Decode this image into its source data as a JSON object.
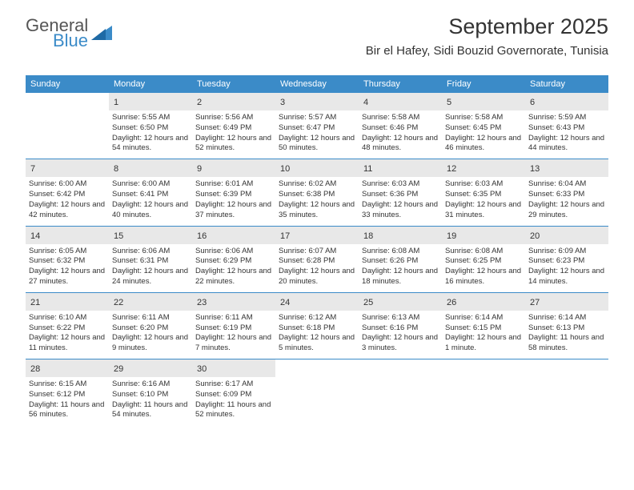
{
  "brand": {
    "name1": "General",
    "name2": "Blue"
  },
  "header": {
    "title": "September 2025",
    "location": "Bir el Hafey, Sidi Bouzid Governorate, Tunisia"
  },
  "colors": {
    "accent": "#3b8bc8",
    "row_border": "#3b8bc8",
    "daynum_bg": "#e8e8e8",
    "text": "#333333",
    "bg": "#ffffff"
  },
  "dayHeaders": [
    "Sunday",
    "Monday",
    "Tuesday",
    "Wednesday",
    "Thursday",
    "Friday",
    "Saturday"
  ],
  "weeks": [
    [
      {
        "blank": true
      },
      {
        "n": "1",
        "sr": "Sunrise: 5:55 AM",
        "ss": "Sunset: 6:50 PM",
        "dl": "Daylight: 12 hours and 54 minutes."
      },
      {
        "n": "2",
        "sr": "Sunrise: 5:56 AM",
        "ss": "Sunset: 6:49 PM",
        "dl": "Daylight: 12 hours and 52 minutes."
      },
      {
        "n": "3",
        "sr": "Sunrise: 5:57 AM",
        "ss": "Sunset: 6:47 PM",
        "dl": "Daylight: 12 hours and 50 minutes."
      },
      {
        "n": "4",
        "sr": "Sunrise: 5:58 AM",
        "ss": "Sunset: 6:46 PM",
        "dl": "Daylight: 12 hours and 48 minutes."
      },
      {
        "n": "5",
        "sr": "Sunrise: 5:58 AM",
        "ss": "Sunset: 6:45 PM",
        "dl": "Daylight: 12 hours and 46 minutes."
      },
      {
        "n": "6",
        "sr": "Sunrise: 5:59 AM",
        "ss": "Sunset: 6:43 PM",
        "dl": "Daylight: 12 hours and 44 minutes."
      }
    ],
    [
      {
        "n": "7",
        "sr": "Sunrise: 6:00 AM",
        "ss": "Sunset: 6:42 PM",
        "dl": "Daylight: 12 hours and 42 minutes."
      },
      {
        "n": "8",
        "sr": "Sunrise: 6:00 AM",
        "ss": "Sunset: 6:41 PM",
        "dl": "Daylight: 12 hours and 40 minutes."
      },
      {
        "n": "9",
        "sr": "Sunrise: 6:01 AM",
        "ss": "Sunset: 6:39 PM",
        "dl": "Daylight: 12 hours and 37 minutes."
      },
      {
        "n": "10",
        "sr": "Sunrise: 6:02 AM",
        "ss": "Sunset: 6:38 PM",
        "dl": "Daylight: 12 hours and 35 minutes."
      },
      {
        "n": "11",
        "sr": "Sunrise: 6:03 AM",
        "ss": "Sunset: 6:36 PM",
        "dl": "Daylight: 12 hours and 33 minutes."
      },
      {
        "n": "12",
        "sr": "Sunrise: 6:03 AM",
        "ss": "Sunset: 6:35 PM",
        "dl": "Daylight: 12 hours and 31 minutes."
      },
      {
        "n": "13",
        "sr": "Sunrise: 6:04 AM",
        "ss": "Sunset: 6:33 PM",
        "dl": "Daylight: 12 hours and 29 minutes."
      }
    ],
    [
      {
        "n": "14",
        "sr": "Sunrise: 6:05 AM",
        "ss": "Sunset: 6:32 PM",
        "dl": "Daylight: 12 hours and 27 minutes."
      },
      {
        "n": "15",
        "sr": "Sunrise: 6:06 AM",
        "ss": "Sunset: 6:31 PM",
        "dl": "Daylight: 12 hours and 24 minutes."
      },
      {
        "n": "16",
        "sr": "Sunrise: 6:06 AM",
        "ss": "Sunset: 6:29 PM",
        "dl": "Daylight: 12 hours and 22 minutes."
      },
      {
        "n": "17",
        "sr": "Sunrise: 6:07 AM",
        "ss": "Sunset: 6:28 PM",
        "dl": "Daylight: 12 hours and 20 minutes."
      },
      {
        "n": "18",
        "sr": "Sunrise: 6:08 AM",
        "ss": "Sunset: 6:26 PM",
        "dl": "Daylight: 12 hours and 18 minutes."
      },
      {
        "n": "19",
        "sr": "Sunrise: 6:08 AM",
        "ss": "Sunset: 6:25 PM",
        "dl": "Daylight: 12 hours and 16 minutes."
      },
      {
        "n": "20",
        "sr": "Sunrise: 6:09 AM",
        "ss": "Sunset: 6:23 PM",
        "dl": "Daylight: 12 hours and 14 minutes."
      }
    ],
    [
      {
        "n": "21",
        "sr": "Sunrise: 6:10 AM",
        "ss": "Sunset: 6:22 PM",
        "dl": "Daylight: 12 hours and 11 minutes."
      },
      {
        "n": "22",
        "sr": "Sunrise: 6:11 AM",
        "ss": "Sunset: 6:20 PM",
        "dl": "Daylight: 12 hours and 9 minutes."
      },
      {
        "n": "23",
        "sr": "Sunrise: 6:11 AM",
        "ss": "Sunset: 6:19 PM",
        "dl": "Daylight: 12 hours and 7 minutes."
      },
      {
        "n": "24",
        "sr": "Sunrise: 6:12 AM",
        "ss": "Sunset: 6:18 PM",
        "dl": "Daylight: 12 hours and 5 minutes."
      },
      {
        "n": "25",
        "sr": "Sunrise: 6:13 AM",
        "ss": "Sunset: 6:16 PM",
        "dl": "Daylight: 12 hours and 3 minutes."
      },
      {
        "n": "26",
        "sr": "Sunrise: 6:14 AM",
        "ss": "Sunset: 6:15 PM",
        "dl": "Daylight: 12 hours and 1 minute."
      },
      {
        "n": "27",
        "sr": "Sunrise: 6:14 AM",
        "ss": "Sunset: 6:13 PM",
        "dl": "Daylight: 11 hours and 58 minutes."
      }
    ],
    [
      {
        "n": "28",
        "sr": "Sunrise: 6:15 AM",
        "ss": "Sunset: 6:12 PM",
        "dl": "Daylight: 11 hours and 56 minutes."
      },
      {
        "n": "29",
        "sr": "Sunrise: 6:16 AM",
        "ss": "Sunset: 6:10 PM",
        "dl": "Daylight: 11 hours and 54 minutes."
      },
      {
        "n": "30",
        "sr": "Sunrise: 6:17 AM",
        "ss": "Sunset: 6:09 PM",
        "dl": "Daylight: 11 hours and 52 minutes."
      },
      {
        "blank": true
      },
      {
        "blank": true
      },
      {
        "blank": true
      },
      {
        "blank": true
      }
    ]
  ]
}
